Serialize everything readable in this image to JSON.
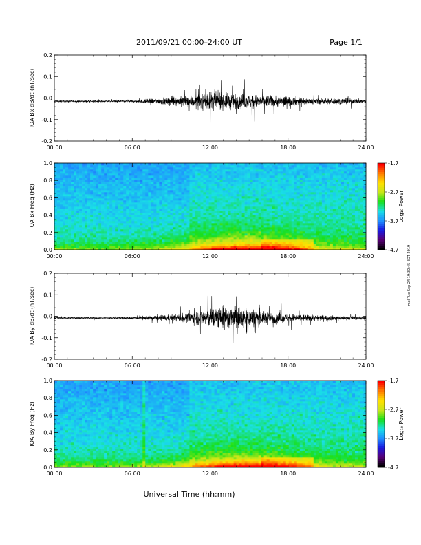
{
  "header": {
    "title": "2011/09/21  00:00–24:00 UT",
    "page": "Page 1/1",
    "footer": "Universal Time (hh:mm)",
    "side_stamp": "mel Tue Sep 24 19:30:45 EDT 2019"
  },
  "colors": {
    "trace": "#000000",
    "colormap": [
      "#000000",
      "#5a0078",
      "#1a1ae0",
      "#1f90ff",
      "#19e0e6",
      "#19e01a",
      "#c8e619",
      "#ffe000",
      "#ff8000",
      "#ff0000"
    ]
  },
  "chart_data": [
    {
      "type": "line",
      "ylabel": "IQA Bx dB/dt (nT/sec)",
      "ylim": [
        -0.2,
        0.2
      ],
      "yticks": [
        "-0.2",
        "-0.1",
        "0.0",
        "0.1",
        "0.2"
      ],
      "xlim": [
        "00:00",
        "24:00"
      ],
      "xticks": [
        "00:00",
        "06:00",
        "12:00",
        "18:00",
        "24:00"
      ],
      "series": [
        {
          "x": [
            "00:00",
            "02:00",
            "04:00",
            "06:00",
            "08:00",
            "10:00",
            "12:00",
            "14:00",
            "16:00",
            "18:00",
            "20:00",
            "22:00",
            "24:00"
          ],
          "amplitude": [
            0.01,
            0.008,
            0.008,
            0.012,
            0.03,
            0.05,
            0.09,
            0.08,
            0.06,
            0.05,
            0.03,
            0.03,
            0.02
          ],
          "offset": -0.015
        }
      ]
    },
    {
      "type": "heatmap",
      "ylabel": "IQA Bx Freq (Hz)",
      "ylim": [
        0.0,
        1.0
      ],
      "yticks": [
        "0.0",
        "0.2",
        "0.4",
        "0.6",
        "0.8",
        "1.0"
      ],
      "xticks": [
        "00:00",
        "06:00",
        "12:00",
        "18:00",
        "24:00"
      ],
      "colorbar": {
        "label": "Log₁₀ Power",
        "range": [
          -4.7,
          -1.7
        ],
        "ticks": [
          "-1.7",
          "-2.7",
          "-3.7",
          "-4.7"
        ]
      }
    },
    {
      "type": "line",
      "ylabel": "IQA By dB/dt (nT/sec)",
      "ylim": [
        -0.2,
        0.2
      ],
      "yticks": [
        "-0.2",
        "-0.1",
        "0.0",
        "0.1",
        "0.2"
      ],
      "xlim": [
        "00:00",
        "24:00"
      ],
      "xticks": [
        "00:00",
        "06:00",
        "12:00",
        "18:00",
        "24:00"
      ],
      "series": [
        {
          "x": [
            "00:00",
            "02:00",
            "04:00",
            "06:00",
            "08:00",
            "10:00",
            "12:00",
            "14:00",
            "16:00",
            "18:00",
            "20:00",
            "22:00",
            "24:00"
          ],
          "amplitude": [
            0.008,
            0.008,
            0.008,
            0.01,
            0.025,
            0.04,
            0.1,
            0.12,
            0.07,
            0.04,
            0.03,
            0.02,
            0.015
          ],
          "offset": -0.008
        }
      ]
    },
    {
      "type": "heatmap",
      "ylabel": "IQA By Freq (Hz)",
      "ylim": [
        0.0,
        1.0
      ],
      "yticks": [
        "0.0",
        "0.2",
        "0.4",
        "0.6",
        "0.8",
        "1.0"
      ],
      "xticks": [
        "00:00",
        "06:00",
        "12:00",
        "18:00",
        "24:00"
      ],
      "colorbar": {
        "label": "Log₁₀ Power",
        "range": [
          -4.7,
          -1.7
        ],
        "ticks": [
          "-1.7",
          "-2.7",
          "-3.7",
          "-4.7"
        ]
      }
    }
  ]
}
